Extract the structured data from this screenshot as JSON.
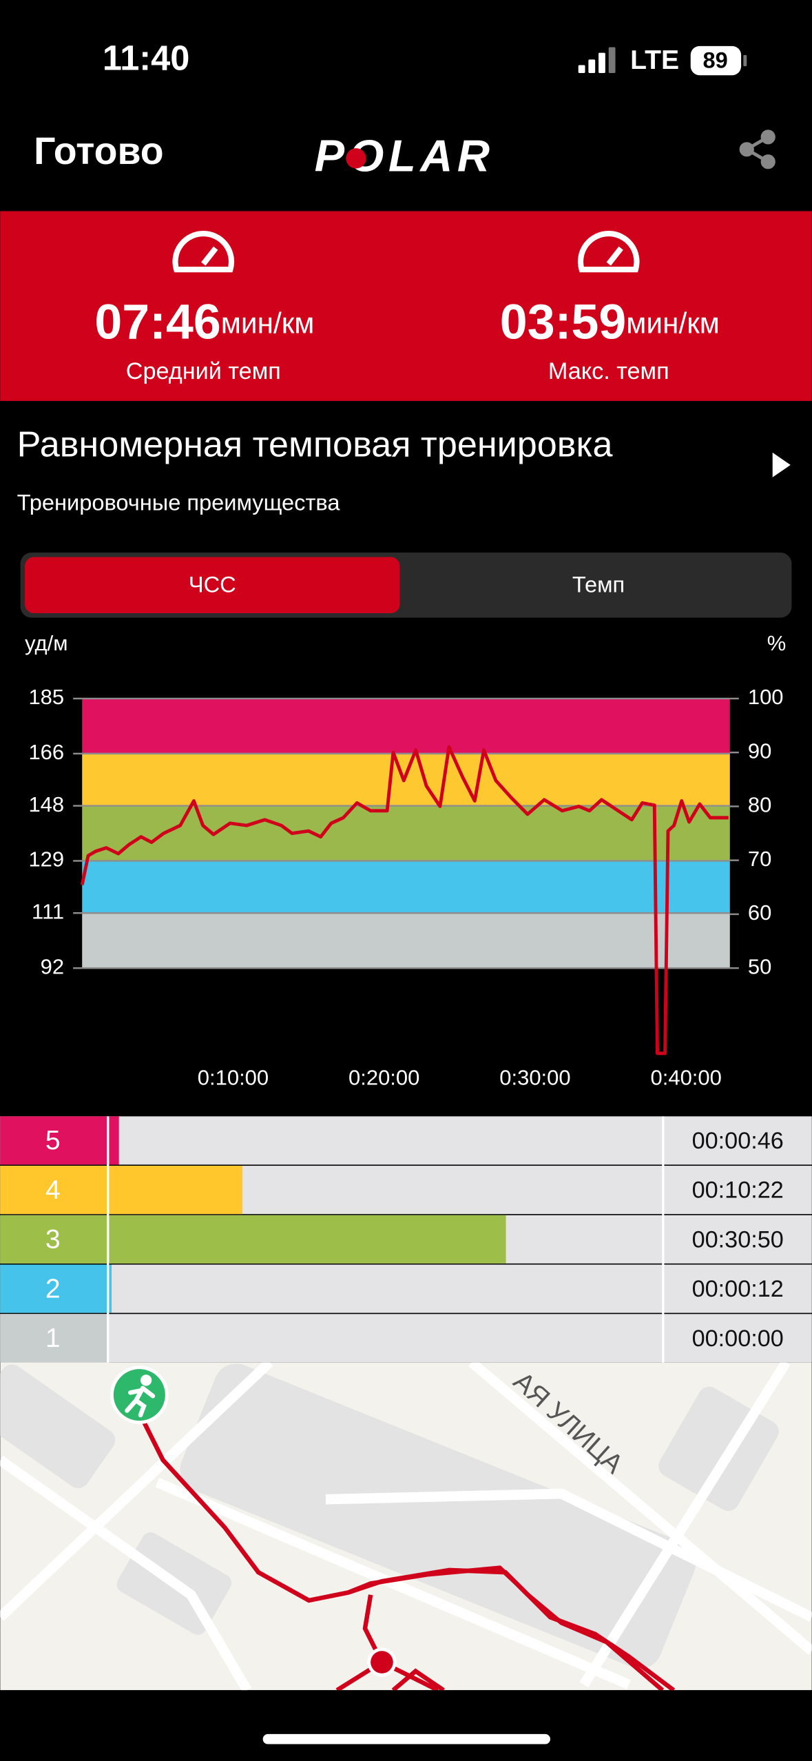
{
  "status_bar": {
    "time": "11:40",
    "network": "LTE",
    "battery": "89"
  },
  "header": {
    "done": "Готово",
    "logo": "POLAR"
  },
  "stats": [
    {
      "value": "07:46",
      "unit": "мин/км",
      "label": "Средний темп"
    },
    {
      "value": "03:59",
      "unit": "мин/км",
      "label": "Макс. темп"
    }
  ],
  "workout": {
    "title": "Равномерная темповая тренировка",
    "subtitle": "Тренировочные преимущества"
  },
  "tabs": [
    "ЧСС",
    "Темп"
  ],
  "chart_data": [
    {
      "type": "line",
      "y_label": "уд/м",
      "y2_label": "%",
      "color": "#d0021b",
      "x": [
        0,
        0.4,
        0.9,
        1.6,
        2.4,
        3.1,
        3.9,
        4.6,
        5.4,
        6.5,
        7.4,
        8.0,
        8.7,
        9.8,
        10.9,
        12.1,
        13.2,
        13.9,
        15.0,
        15.8,
        16.5,
        17.3,
        18.2,
        19.1,
        20.2,
        20.6,
        21.3,
        22.1,
        22.8,
        23.7,
        24.3,
        25.2,
        26.0,
        26.6,
        27.4,
        28.4,
        29.5,
        30.6,
        31.8,
        32.9,
        33.6,
        34.4,
        35.5,
        36.4,
        37.1,
        37.9,
        38.1,
        38.6,
        38.8,
        39.2,
        39.7,
        40.2,
        40.9,
        41.6,
        42.8
      ],
      "values": [
        120.7,
        130.8,
        132.3,
        133.5,
        131.5,
        134.6,
        137.3,
        135.4,
        138.5,
        141.2,
        149.7,
        141.2,
        138.1,
        142.0,
        141.2,
        143.2,
        141.2,
        138.5,
        139.3,
        137.3,
        142.0,
        143.9,
        149.0,
        146.3,
        146.3,
        166.4,
        156.7,
        167.2,
        154.8,
        147.8,
        168.3,
        157.9,
        149.7,
        167.2,
        156.7,
        150.9,
        145.1,
        150.1,
        146.3,
        147.8,
        146.3,
        150.1,
        146.3,
        143.2,
        149.0,
        148.2,
        62.6,
        62.6,
        139.3,
        141.2,
        149.7,
        142.4,
        148.6,
        143.9,
        143.9
      ],
      "xlim": [
        0,
        42.9
      ],
      "xticks": [
        {
          "value": 10,
          "label": "0:10:00"
        },
        {
          "value": 20,
          "label": "0:20:00"
        },
        {
          "value": 30,
          "label": "0:30:00"
        },
        {
          "value": 40,
          "label": "0:40:00"
        }
      ],
      "ylim": [
        92,
        185
      ],
      "yticks": [
        92,
        111,
        129,
        148,
        166,
        185
      ],
      "y2lim": [
        50,
        100
      ],
      "y2ticks": [
        50,
        60,
        70,
        80,
        90,
        100
      ],
      "zones": [
        {
          "from": 92,
          "to": 111,
          "color": "#c6cbcb"
        },
        {
          "from": 111,
          "to": 129,
          "color": "#47c4ec"
        },
        {
          "from": 129,
          "to": 148,
          "color": "#9ab84c"
        },
        {
          "from": 148,
          "to": 166,
          "color": "#fdc830"
        },
        {
          "from": 166,
          "to": 185,
          "color": "#e0115f"
        }
      ]
    },
    {
      "type": "bar",
      "categories": [
        "5",
        "4",
        "3",
        "2",
        "1"
      ],
      "values": [
        46,
        622,
        1850,
        12,
        0
      ],
      "value_labels": [
        "00:00:46",
        "00:10:22",
        "00:30:50",
        "00:00:12",
        "00:00:00"
      ],
      "colors": [
        "#e0115f",
        "#ffc72c",
        "#9dbf4a",
        "#45c3ea",
        "#c8cdce"
      ],
      "xlim": [
        0,
        2580
      ]
    }
  ],
  "map": {
    "street": "АЯ УЛИЦА"
  }
}
